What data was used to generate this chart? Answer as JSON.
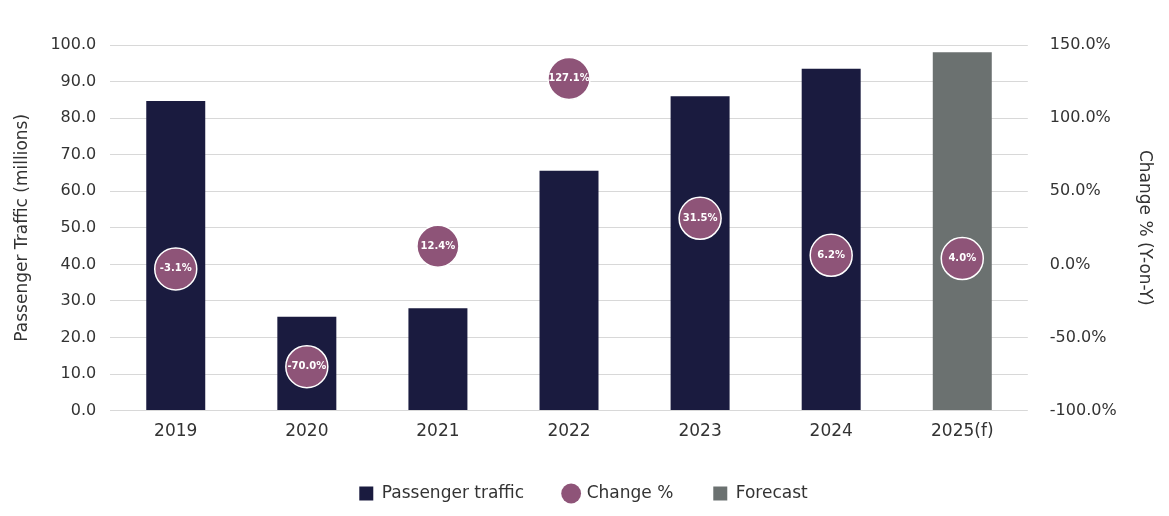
{
  "chart_data": {
    "type": "bar",
    "categories": [
      "2019",
      "2020",
      "2021",
      "2022",
      "2023",
      "2024",
      "2025(f)"
    ],
    "ylabel": "Passenger Traffic (millions)",
    "y2label": "Change % (Y-on-Y)",
    "stacked": true,
    "series": [
      {
        "name": "Passenger traffic",
        "color": "#1a1b3f",
        "values": [
          84.7,
          25.7,
          28.0,
          65.6,
          86.0,
          93.5,
          null
        ]
      },
      {
        "name": "Change %",
        "type": "scatter",
        "axis": "y2",
        "color": "#8e5478",
        "values": [
          -3.1,
          -70.0,
          12.4,
          127.1,
          31.5,
          6.2,
          4.0
        ],
        "value_labels": [
          "-3.1%",
          "-70.0%",
          "12.4%",
          "127.1%",
          "31.5%",
          "6.2%",
          "4.0%"
        ]
      },
      {
        "name": "Forecast",
        "color": "#6b7170",
        "values": [
          null,
          null,
          null,
          null,
          null,
          null,
          98.0
        ]
      }
    ],
    "ylim": [
      0,
      100
    ],
    "yticks": [
      {
        "value": 0,
        "label": "0.0"
      },
      {
        "value": 10,
        "label": "10.0"
      },
      {
        "value": 20,
        "label": "20.0"
      },
      {
        "value": 30,
        "label": "30.0"
      },
      {
        "value": 40,
        "label": "40.0"
      },
      {
        "value": 50,
        "label": "50.0"
      },
      {
        "value": 60,
        "label": "60.0"
      },
      {
        "value": 70,
        "label": "70.0"
      },
      {
        "value": 80,
        "label": "80.0"
      },
      {
        "value": 90,
        "label": "90.0"
      },
      {
        "value": 100,
        "label": "100.0"
      }
    ],
    "y2lim": [
      -100,
      150
    ],
    "y2ticks": [
      {
        "value": -100,
        "label": "-100.0%"
      },
      {
        "value": -50,
        "label": "-50.0%"
      },
      {
        "value": 0,
        "label": "0.0%"
      },
      {
        "value": 50,
        "label": "50.0%"
      },
      {
        "value": 100,
        "label": "100.0%"
      },
      {
        "value": 150,
        "label": "150.0%"
      }
    ],
    "grid": "y",
    "legend": "bottom",
    "marker": "circle"
  }
}
